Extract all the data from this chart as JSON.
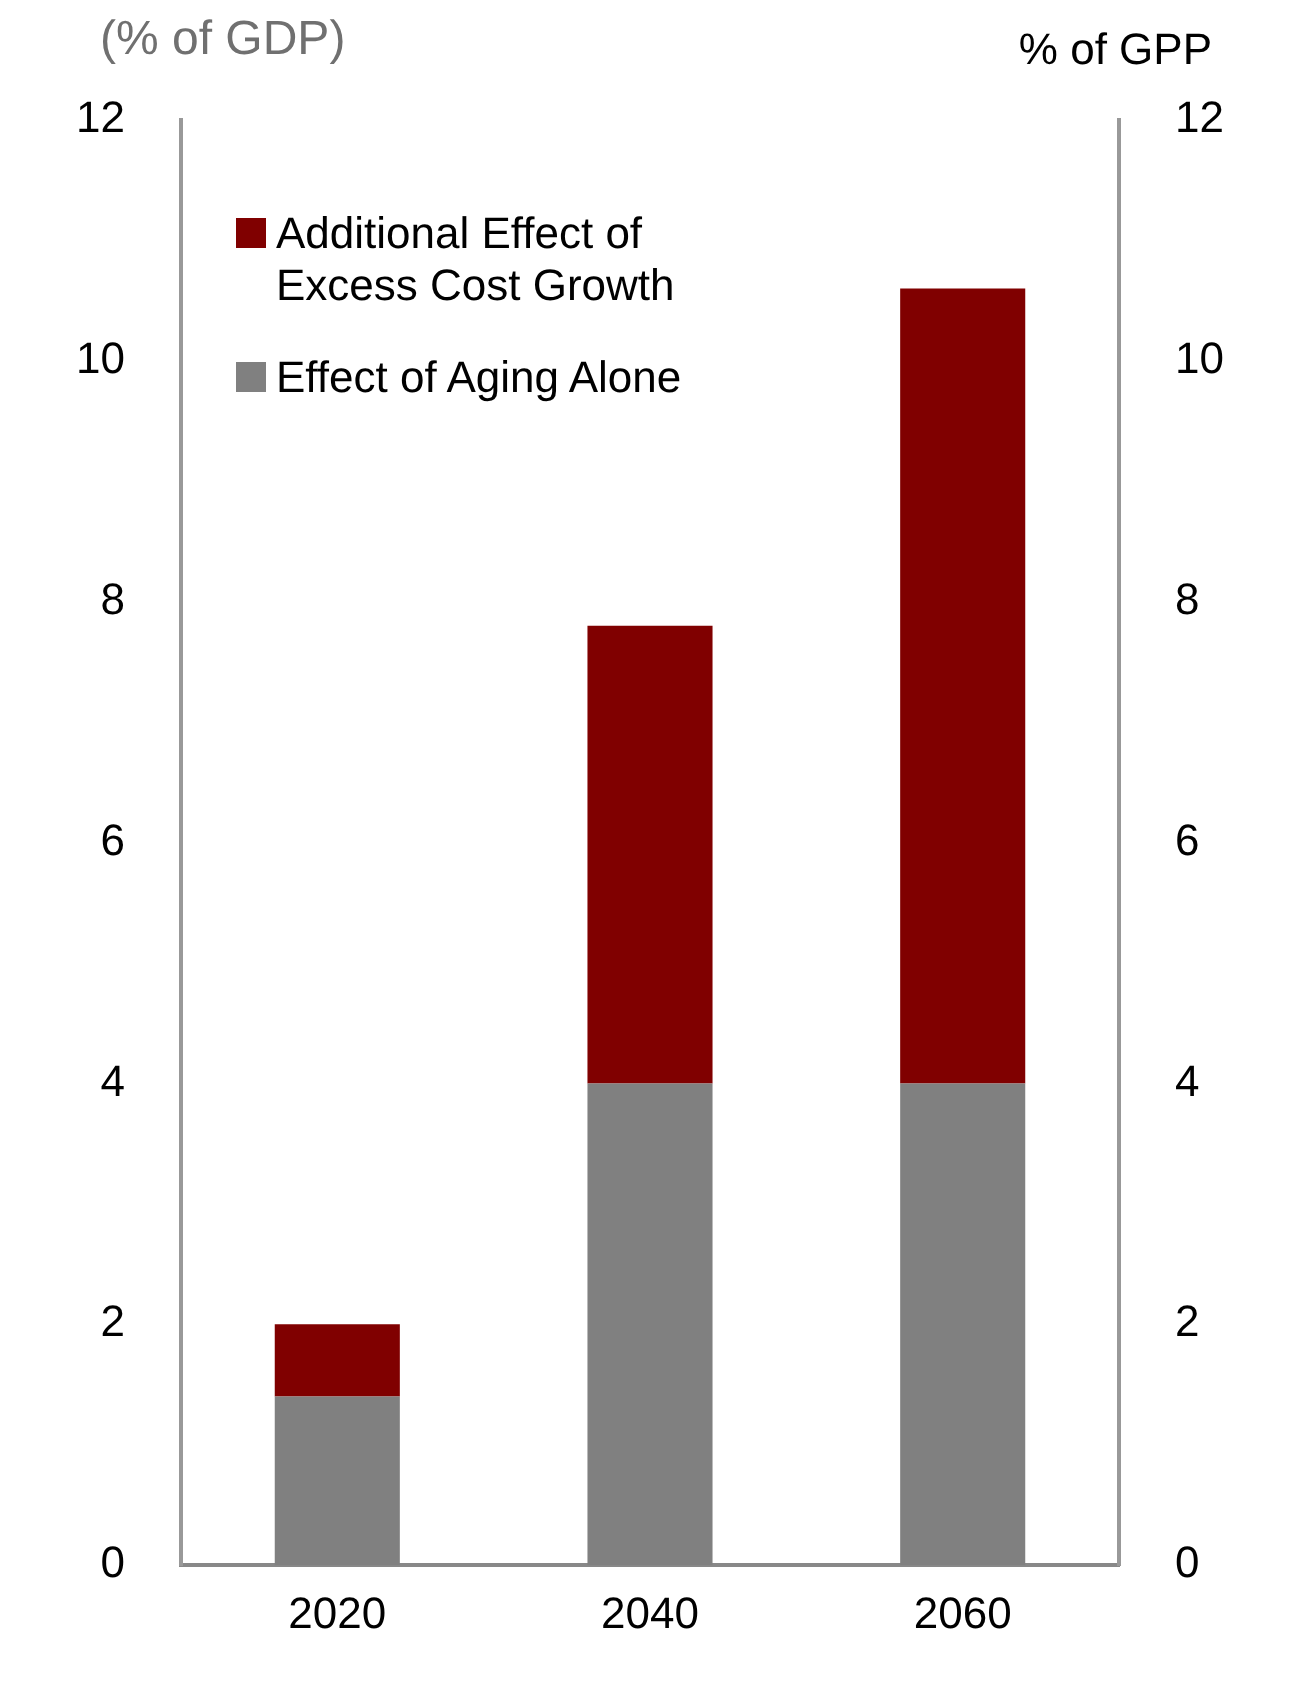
{
  "chart_data": {
    "type": "bar",
    "ylabel": "(% of GDP)",
    "y2label": "% of GPP",
    "categories": [
      "2020",
      "2040",
      "2060"
    ],
    "series": [
      {
        "name": "Effect of Aging Alone",
        "color": "#808080",
        "values": [
          1.4,
          4.0,
          4.0
        ]
      },
      {
        "name": "Additional Effect of Excess Cost Growth",
        "color": "#800000",
        "values": [
          0.6,
          3.8,
          6.6
        ]
      }
    ],
    "stacked": true,
    "ylim": [
      0,
      12
    ],
    "yticks": [
      0,
      2,
      4,
      6,
      8,
      10,
      12
    ],
    "y2lim": [
      0,
      12
    ],
    "y2ticks": [
      0,
      2,
      4,
      6,
      8,
      10,
      12
    ],
    "grid": false,
    "legend": "top left"
  }
}
